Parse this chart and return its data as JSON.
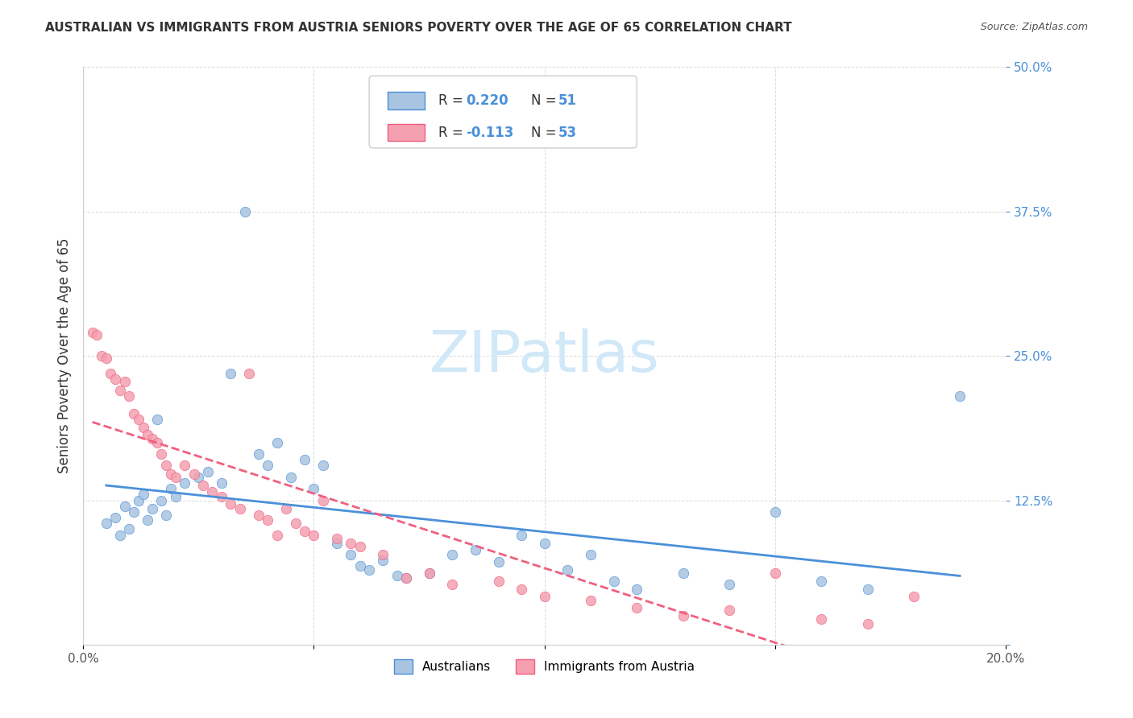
{
  "title": "AUSTRALIAN VS IMMIGRANTS FROM AUSTRIA SENIORS POVERTY OVER THE AGE OF 65 CORRELATION CHART",
  "source": "Source: ZipAtlas.com",
  "ylabel": "Seniors Poverty Over the Age of 65",
  "xlabel": "",
  "xlim": [
    0.0,
    0.2
  ],
  "ylim": [
    0.0,
    0.5
  ],
  "xticks": [
    0.0,
    0.05,
    0.1,
    0.15,
    0.2
  ],
  "yticks": [
    0.0,
    0.125,
    0.25,
    0.375,
    0.5
  ],
  "xtick_labels": [
    "0.0%",
    "",
    "",
    "",
    "20.0%"
  ],
  "ytick_labels": [
    "",
    "12.5%",
    "25.0%",
    "37.5%",
    "50.0%"
  ],
  "legend_r1": "R = 0.220",
  "legend_n1": "N = 51",
  "legend_r2": "R = -0.113",
  "legend_n2": "N = 53",
  "color_aus": "#a8c4e0",
  "color_aut": "#f4a0b0",
  "color_aus_line": "#4a90d9",
  "color_aut_line": "#f06080",
  "watermark": "ZIPatlas",
  "watermark_color": "#d0e8f8",
  "aus_scatter_x": [
    0.005,
    0.007,
    0.008,
    0.009,
    0.01,
    0.011,
    0.012,
    0.013,
    0.014,
    0.015,
    0.016,
    0.017,
    0.018,
    0.019,
    0.02,
    0.022,
    0.025,
    0.027,
    0.03,
    0.032,
    0.035,
    0.038,
    0.04,
    0.042,
    0.045,
    0.048,
    0.05,
    0.052,
    0.055,
    0.058,
    0.06,
    0.062,
    0.065,
    0.068,
    0.07,
    0.075,
    0.08,
    0.085,
    0.09,
    0.095,
    0.1,
    0.105,
    0.11,
    0.115,
    0.12,
    0.13,
    0.14,
    0.15,
    0.16,
    0.17,
    0.19
  ],
  "aus_scatter_y": [
    0.105,
    0.11,
    0.095,
    0.12,
    0.1,
    0.115,
    0.125,
    0.13,
    0.108,
    0.118,
    0.195,
    0.125,
    0.112,
    0.135,
    0.128,
    0.14,
    0.145,
    0.15,
    0.14,
    0.235,
    0.375,
    0.165,
    0.155,
    0.175,
    0.145,
    0.16,
    0.135,
    0.155,
    0.088,
    0.078,
    0.068,
    0.065,
    0.073,
    0.06,
    0.058,
    0.062,
    0.078,
    0.082,
    0.072,
    0.095,
    0.088,
    0.065,
    0.078,
    0.055,
    0.048,
    0.062,
    0.052,
    0.115,
    0.055,
    0.048,
    0.215
  ],
  "aut_scatter_x": [
    0.002,
    0.003,
    0.004,
    0.005,
    0.006,
    0.007,
    0.008,
    0.009,
    0.01,
    0.011,
    0.012,
    0.013,
    0.014,
    0.015,
    0.016,
    0.017,
    0.018,
    0.019,
    0.02,
    0.022,
    0.024,
    0.026,
    0.028,
    0.03,
    0.032,
    0.034,
    0.036,
    0.038,
    0.04,
    0.042,
    0.044,
    0.046,
    0.048,
    0.05,
    0.052,
    0.055,
    0.058,
    0.06,
    0.065,
    0.07,
    0.075,
    0.08,
    0.09,
    0.095,
    0.1,
    0.11,
    0.12,
    0.13,
    0.14,
    0.15,
    0.16,
    0.17,
    0.18
  ],
  "aut_scatter_y": [
    0.27,
    0.268,
    0.25,
    0.248,
    0.235,
    0.23,
    0.22,
    0.228,
    0.215,
    0.2,
    0.195,
    0.188,
    0.182,
    0.178,
    0.175,
    0.165,
    0.155,
    0.148,
    0.145,
    0.155,
    0.148,
    0.138,
    0.132,
    0.128,
    0.122,
    0.118,
    0.235,
    0.112,
    0.108,
    0.095,
    0.118,
    0.105,
    0.098,
    0.095,
    0.125,
    0.092,
    0.088,
    0.085,
    0.078,
    0.058,
    0.062,
    0.052,
    0.055,
    0.048,
    0.042,
    0.038,
    0.032,
    0.025,
    0.03,
    0.062,
    0.022,
    0.018,
    0.042
  ]
}
